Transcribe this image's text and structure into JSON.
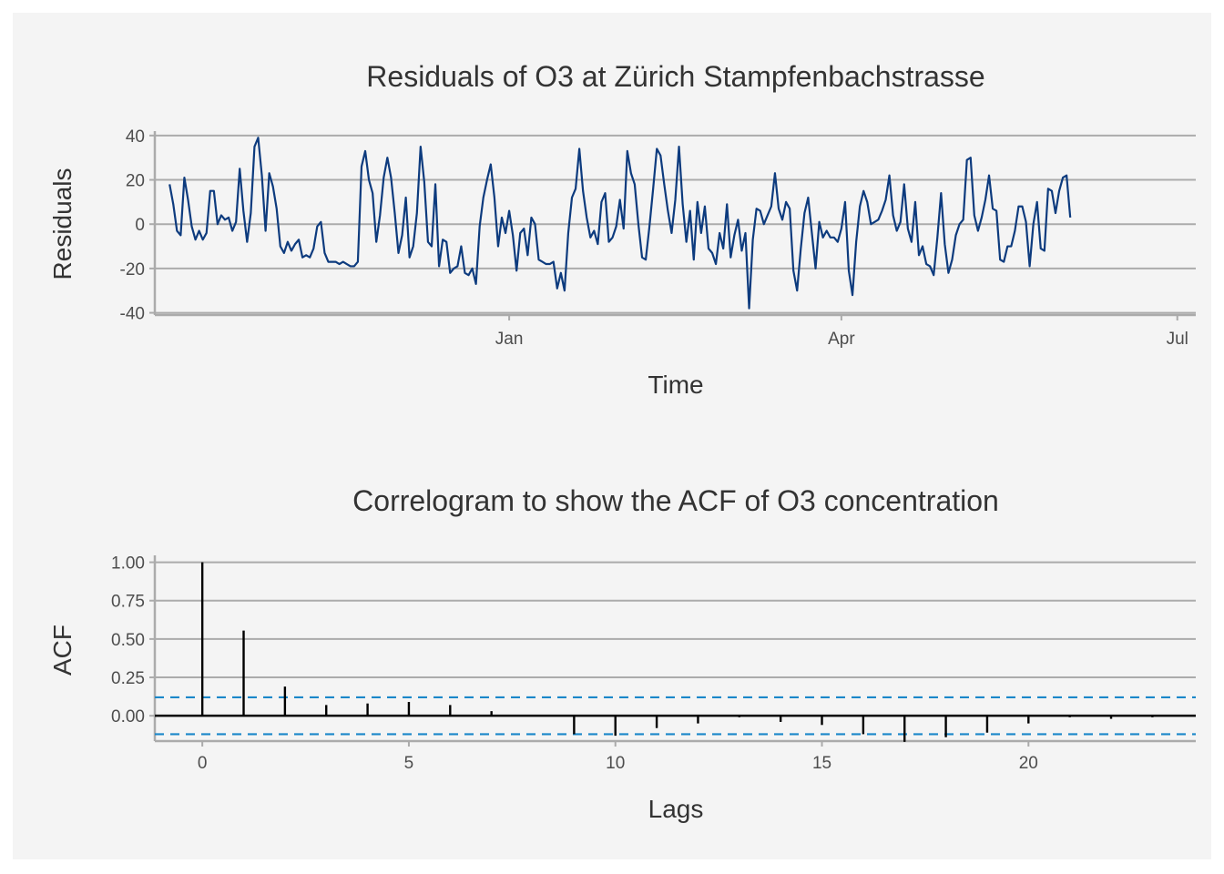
{
  "colors": {
    "page_background": "#f4f4f4",
    "residual_line": "#0d3b7e",
    "acf_bars": "#000000",
    "confidence_band": "#1a87c9",
    "gridline": "#ababab",
    "text": "#333333"
  },
  "chart_data": [
    {
      "type": "line",
      "title": "Residuals of O3 at Zürich Stampfenbachstrasse",
      "xlabel": "Time",
      "ylabel": "Residuals",
      "x_unit": "day offset from 1 October (year not shown)",
      "xlim": [
        -4,
        278
      ],
      "ylim": [
        -41,
        42
      ],
      "x_ticks": [
        {
          "label": "Jan",
          "x": 92
        },
        {
          "label": "Apr",
          "x": 182
        },
        {
          "label": "Jul",
          "x": 273
        }
      ],
      "y_ticks": [
        {
          "label": "40",
          "value": 40
        },
        {
          "label": "20",
          "value": 20
        },
        {
          "label": "0",
          "value": 0
        },
        {
          "label": "-20",
          "value": -20
        },
        {
          "label": "-40",
          "value": -40
        }
      ],
      "grid": true,
      "values": [
        18,
        9,
        -3,
        -5,
        21,
        11,
        -1,
        -7,
        -3,
        -7,
        -4,
        15,
        15,
        0,
        4,
        2,
        3,
        -3,
        1,
        25,
        6,
        -8,
        5,
        35,
        39,
        22,
        -3,
        23,
        17,
        7,
        -10,
        -13,
        -8,
        -12,
        -9,
        -7,
        -15,
        -14,
        -15,
        -11,
        -1,
        1,
        -13,
        -17,
        -17,
        -17,
        -18,
        -17,
        -18,
        -19,
        -19,
        -17,
        26,
        33,
        20,
        14,
        -8,
        4,
        21,
        30,
        21,
        5,
        -13,
        -5,
        12,
        -15,
        -10,
        5,
        35,
        19,
        -8,
        -10,
        18,
        -19,
        -7,
        -8,
        -22,
        -20,
        -19,
        -10,
        -22,
        -23,
        -20,
        -27,
        -1,
        12,
        20,
        27,
        12,
        -10,
        3,
        -4,
        6,
        -5,
        -21,
        -4,
        -2,
        -14,
        3,
        0,
        -16,
        -17,
        -18,
        -18,
        -17,
        -29,
        -22,
        -30,
        -4,
        12,
        16,
        34,
        15,
        3,
        -6,
        -3,
        -9,
        10,
        14,
        -8,
        -6,
        -1,
        11,
        -2,
        33,
        23,
        18,
        0,
        -15,
        -16,
        -1,
        16,
        34,
        31,
        18,
        6,
        -4,
        11,
        35,
        9,
        -8,
        6,
        -16,
        10,
        -4,
        8,
        -11,
        -13,
        -18,
        -4,
        -11,
        9,
        -15,
        -5,
        2,
        -12,
        -4,
        -38,
        -7,
        7,
        6,
        0,
        4,
        8,
        23,
        7,
        2,
        10,
        7,
        -21,
        -30,
        -11,
        5,
        12,
        -4,
        -20,
        1,
        -6,
        -3,
        -6,
        -6,
        -8,
        -2,
        10,
        -21,
        -32,
        -8,
        8,
        15,
        10,
        0,
        1,
        2,
        6,
        11,
        22,
        4,
        -3,
        1,
        18,
        -2,
        -8,
        10,
        -14,
        -10,
        -18,
        -19,
        -23,
        -6,
        14,
        -9,
        -22,
        -16,
        -5,
        0,
        2,
        29,
        30,
        4,
        -3,
        3,
        11,
        22,
        7,
        6,
        -16,
        -17,
        -10,
        -10,
        -3,
        8,
        8,
        1,
        -19,
        0,
        10,
        -11,
        -12,
        16,
        15,
        5,
        15,
        21,
        22,
        3
      ]
    },
    {
      "type": "bar",
      "title": "Correlogram to show the ACF of O3 concentration",
      "xlabel": "Lags",
      "ylabel": "ACF",
      "xlim": [
        -1.15,
        24.05
      ],
      "ylim": [
        -0.165,
        1.045
      ],
      "x_ticks": [
        {
          "label": "0",
          "value": 0
        },
        {
          "label": "5",
          "value": 5
        },
        {
          "label": "10",
          "value": 10
        },
        {
          "label": "15",
          "value": 15
        },
        {
          "label": "20",
          "value": 20
        }
      ],
      "y_ticks": [
        {
          "label": "1.00",
          "value": 1.0
        },
        {
          "label": "0.75",
          "value": 0.75
        },
        {
          "label": "0.50",
          "value": 0.5
        },
        {
          "label": "0.25",
          "value": 0.25
        },
        {
          "label": "0.00",
          "value": 0.0
        }
      ],
      "grid": true,
      "confidence_limits": [
        0.12,
        -0.12
      ],
      "lags": [
        0,
        1,
        2,
        3,
        4,
        5,
        6,
        7,
        8,
        9,
        10,
        11,
        12,
        13,
        14,
        15,
        16,
        17,
        18,
        19,
        20,
        21,
        22,
        23
      ],
      "values": [
        1.0,
        0.555,
        0.19,
        0.07,
        0.08,
        0.09,
        0.07,
        0.03,
        0.0,
        -0.12,
        -0.13,
        -0.08,
        -0.05,
        -0.01,
        -0.04,
        -0.06,
        -0.12,
        -0.17,
        -0.14,
        -0.11,
        -0.05,
        -0.01,
        -0.02,
        -0.01
      ]
    }
  ]
}
